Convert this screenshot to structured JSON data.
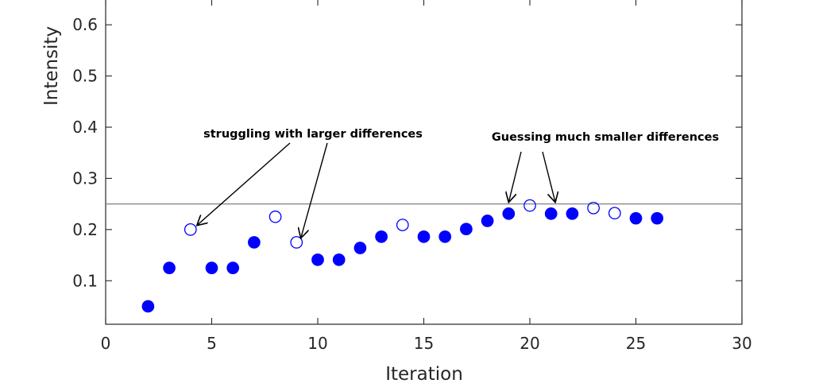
{
  "chart_data": {
    "type": "scatter",
    "xlabel": "Iteration",
    "ylabel": "Intensity",
    "xlim": [
      0,
      30
    ],
    "ylim": [
      0.015,
      0.65
    ],
    "xticks": [
      "0",
      "5",
      "10",
      "15",
      "20",
      "25",
      "30"
    ],
    "yticks": [
      "0.1",
      "0.2",
      "0.3",
      "0.4",
      "0.5",
      "0.6"
    ],
    "reference_line": {
      "y": 0.25,
      "color": "#808080"
    },
    "marker_color": "#0000ff",
    "series": [
      {
        "filled": true,
        "points": [
          [
            2,
            0.05
          ],
          [
            3,
            0.125
          ],
          [
            5,
            0.125
          ],
          [
            6,
            0.125
          ],
          [
            7,
            0.175
          ],
          [
            10,
            0.141
          ],
          [
            11,
            0.141
          ],
          [
            12,
            0.164
          ],
          [
            13,
            0.186
          ],
          [
            15,
            0.186
          ],
          [
            16,
            0.186
          ],
          [
            17,
            0.201
          ],
          [
            18,
            0.217
          ],
          [
            19,
            0.231
          ],
          [
            21,
            0.231
          ],
          [
            22,
            0.231
          ],
          [
            25,
            0.222
          ],
          [
            26,
            0.222
          ]
        ]
      },
      {
        "filled": false,
        "points": [
          [
            4,
            0.2
          ],
          [
            8,
            0.225
          ],
          [
            9,
            0.175
          ],
          [
            14,
            0.209
          ],
          [
            20,
            0.247
          ],
          [
            23,
            0.242
          ],
          [
            24,
            0.232
          ]
        ]
      }
    ],
    "annotations": [
      {
        "text": "struggling with larger differences",
        "pointers": [
          [
            4.3,
            0.208
          ],
          [
            9.2,
            0.183
          ]
        ]
      },
      {
        "text": "Guessing much smaller differences",
        "pointers": [
          [
            19,
            0.253
          ],
          [
            21.2,
            0.253
          ]
        ]
      }
    ]
  }
}
